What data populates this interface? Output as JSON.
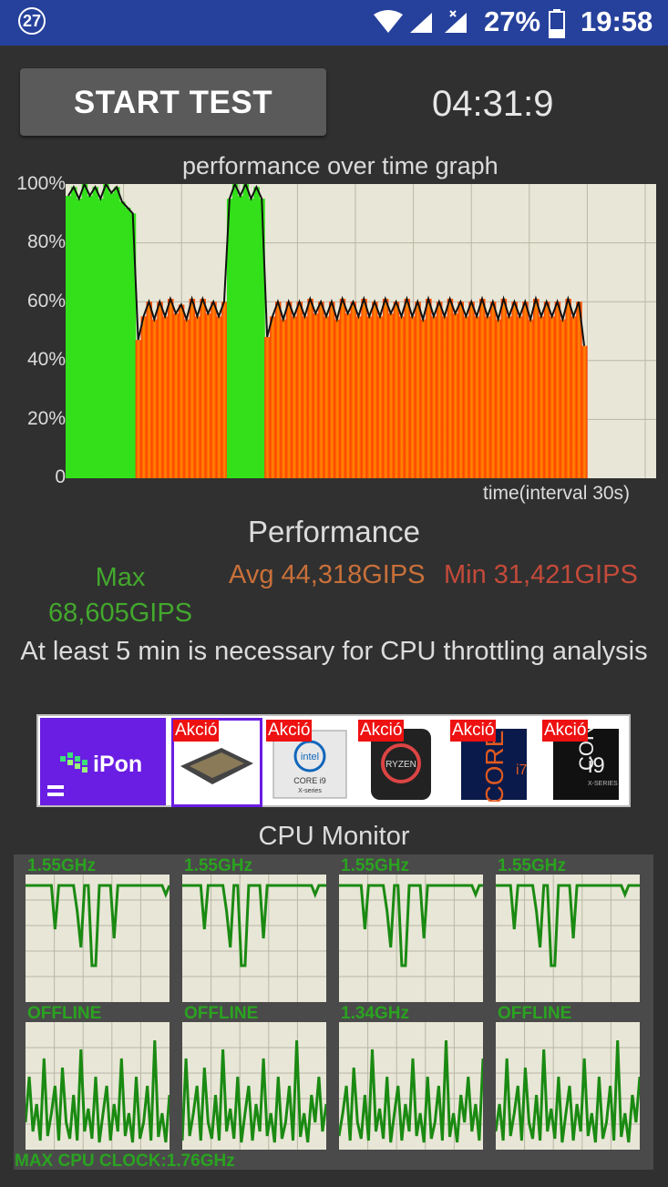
{
  "status_bar": {
    "badge": "27",
    "battery": "27%",
    "time": "19:58"
  },
  "controls": {
    "start_label": "START TEST",
    "timer": "04:31:9"
  },
  "graph": {
    "title": "performance over time graph",
    "xlabel": "time(interval 30s)",
    "yticks": [
      "100%",
      "80%",
      "60%",
      "40%",
      "20%",
      "0"
    ]
  },
  "chart_data": {
    "type": "area",
    "title": "performance over time graph",
    "xlabel": "time(interval 30s)",
    "ylabel": "",
    "ylim": [
      0,
      100
    ],
    "grid": true,
    "series": [
      {
        "values": [
          96,
          99,
          95,
          100,
          96,
          99,
          95,
          100,
          97,
          99,
          94,
          92,
          90,
          47,
          55,
          60,
          54,
          60,
          55,
          61,
          56,
          59,
          54,
          61,
          55,
          61,
          56,
          60,
          55,
          60,
          95,
          100,
          96,
          100,
          95,
          99,
          95,
          48,
          55,
          60,
          54,
          60,
          55,
          60,
          55,
          61,
          56,
          60,
          55,
          60,
          54,
          61,
          56,
          60,
          55,
          61,
          55,
          60,
          55,
          61,
          56,
          60,
          55,
          61,
          55,
          60,
          54,
          61,
          55,
          60,
          55,
          61,
          56,
          60,
          55,
          60,
          55,
          61,
          55,
          60,
          54,
          61,
          55,
          60,
          55,
          60,
          54,
          61,
          55,
          60,
          55,
          60,
          54,
          61,
          55,
          60,
          45
        ]
      }
    ]
  },
  "performance": {
    "title": "Performance",
    "max_label": "Max 68,605GIPS",
    "avg_label": "Avg 44,318GIPS",
    "min_label": "Min 31,421GIPS",
    "notice": "At least 5 min is necessary for CPU throttling analysis"
  },
  "ad": {
    "logo": "iPon",
    "items": [
      {
        "tag": "Akció",
        "product": "processor"
      },
      {
        "tag": "Akció",
        "product": "intel core i9 x-series"
      },
      {
        "tag": "Akció",
        "product": "ryzen"
      },
      {
        "tag": "Akció",
        "product": "core i7"
      },
      {
        "tag": "Akció",
        "product": "core i9 x-series"
      }
    ]
  },
  "cpu_monitor": {
    "title": "CPU Monitor",
    "cores": [
      {
        "label": "1.55GHz"
      },
      {
        "label": "1.55GHz"
      },
      {
        "label": "1.55GHz"
      },
      {
        "label": "1.55GHz"
      },
      {
        "label": "OFFLINE"
      },
      {
        "label": "OFFLINE"
      },
      {
        "label": "1.34GHz"
      },
      {
        "label": "OFFLINE"
      }
    ],
    "max_clock": "MAX CPU CLOCK:1.76GHz"
  },
  "colors": {
    "status_bar": "#26419c",
    "background": "#303030",
    "graph_bg": "#e8e6d6",
    "high_perf": "#33e01a",
    "low_perf": "#ff4a00",
    "cpu_line": "#1a8a12"
  }
}
